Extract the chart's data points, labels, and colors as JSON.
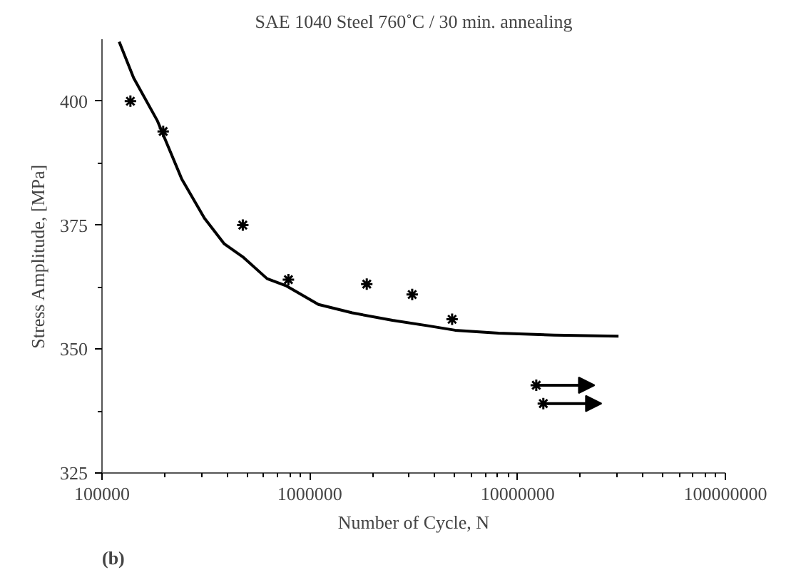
{
  "chart_data": {
    "type": "scatter",
    "title": "SAE 1040 Steel 760˚C / 30 min. annealing",
    "xlabel": "Number of Cycle, N",
    "ylabel": "Stress Amplitude, [MPa]",
    "log": "x",
    "xlim": [
      100000,
      100000000
    ],
    "xticks": [
      100000,
      1000000,
      10000000,
      100000000
    ],
    "ylim": [
      325,
      412.5
    ],
    "yticks": [
      325,
      350,
      375,
      400
    ],
    "marker": "cross",
    "grid": false,
    "annotations": [
      "(b)"
    ],
    "series": [
      {
        "color": "#000000",
        "x": [
          137000,
          197000,
          476000,
          789000,
          1880000,
          3110000,
          4840000
        ],
        "values": [
          400,
          393.9,
          375,
          364,
          363.1,
          361,
          356
        ]
      },
      {
        "color": "#000000",
        "x": [
          12300000,
          13300000
        ],
        "values": [
          342.7,
          339
        ]
      },
      {
        "type": "line",
        "color": "#000000",
        "marker": "none",
        "x": [
          121000,
          142000,
          185000,
          242000,
          311000,
          388000,
          476000,
          623000,
          766000,
          1100000,
          1600000,
          2500000,
          3700000,
          5000000,
          8100000,
          15000000,
          30600000
        ],
        "values": [
          412,
          404.7,
          396,
          384.3,
          376.4,
          371.2,
          368.6,
          364.2,
          362.8,
          359,
          357.3,
          355.8,
          354.7,
          353.8,
          353.2,
          352.8,
          352.6
        ]
      }
    ]
  }
}
